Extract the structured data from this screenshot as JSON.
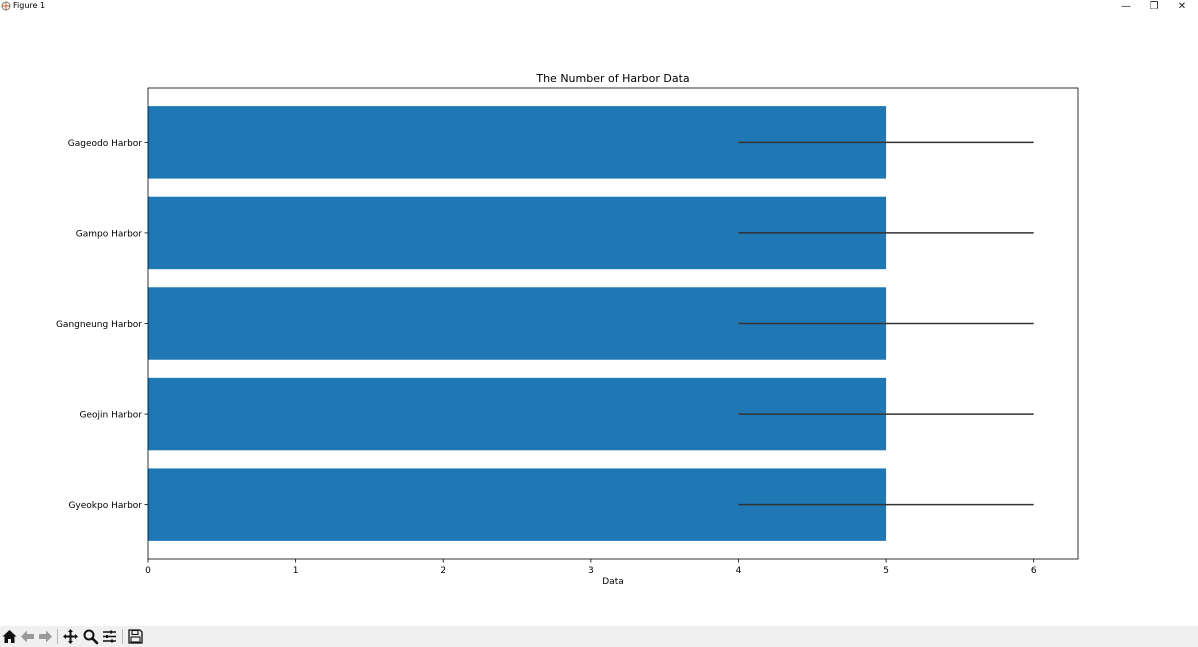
{
  "window": {
    "title": "Figure 1"
  },
  "window_controls": {
    "minimize": "—",
    "maximize": "❐",
    "close": "✕"
  },
  "chart_data": {
    "type": "bar",
    "orientation": "horizontal",
    "title": "The Number of Harbor Data",
    "xlabel": "Data",
    "ylabel": "",
    "categories": [
      "Gageodo Harbor",
      "Gampo Harbor",
      "Gangneung Harbor",
      "Geojin Harbor",
      "Gyeokpo Harbor"
    ],
    "values": [
      5,
      5,
      5,
      5,
      5
    ],
    "error": [
      1,
      1,
      1,
      1,
      1
    ],
    "xlim": [
      0,
      6.3
    ],
    "xticks": [
      0,
      1,
      2,
      3,
      4,
      5,
      6
    ],
    "bar_color": "#1f77b4",
    "error_color": "#333333",
    "grid": false
  },
  "toolbar": {
    "buttons": [
      {
        "name": "home-icon",
        "tooltip": ""
      },
      {
        "name": "back-icon",
        "tooltip": ""
      },
      {
        "name": "forward-icon",
        "tooltip": ""
      },
      {
        "name": "pan-icon",
        "tooltip": ""
      },
      {
        "name": "zoom-icon",
        "tooltip": ""
      },
      {
        "name": "subplots-icon",
        "tooltip": ""
      },
      {
        "name": "save-icon",
        "tooltip": ""
      }
    ]
  }
}
